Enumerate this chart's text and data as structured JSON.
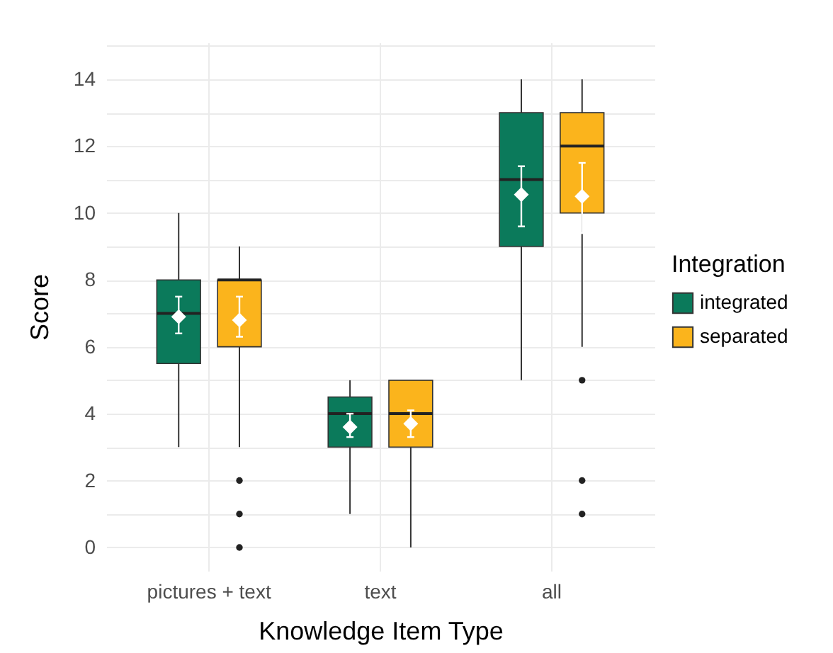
{
  "chart_data": {
    "type": "box",
    "xlabel": "Knowledge Item Type",
    "ylabel": "Score",
    "legend_title": "Integration",
    "categories": [
      "pictures + text",
      "text",
      "all"
    ],
    "series": [
      {
        "name": "integrated",
        "color": "#0b7a5b",
        "boxes": [
          {
            "low": 3,
            "q1": 5.5,
            "median": 7,
            "q3": 8,
            "high": 10
          },
          {
            "low": 1,
            "q1": 3,
            "median": 4,
            "q3": 4.5,
            "high": 5
          },
          {
            "low": 5,
            "q1": 9,
            "median": 11,
            "q3": 13,
            "high": 14
          }
        ]
      },
      {
        "name": "separated",
        "color": "#fbb41c",
        "boxes": [
          {
            "low": 3,
            "q1": 6,
            "median": 8,
            "q3": 8,
            "high": 9,
            "outliers": [
              2,
              1,
              0
            ]
          },
          {
            "low": 0,
            "q1": 3,
            "median": 4,
            "q3": 5,
            "high": 5
          },
          {
            "low": 6,
            "q1": 10,
            "median": 12,
            "q3": 13,
            "high": 14,
            "outliers": [
              5,
              2,
              1
            ]
          }
        ]
      },
      {
        "type": "scatter",
        "color": "#ffffff",
        "x": [
          "pictures + text",
          "text",
          "all"
        ],
        "values": [
          6.9,
          3.6,
          10.55
        ],
        "errors": [
          [
            6.4,
            7.5
          ],
          [
            3.3,
            4.0
          ],
          [
            9.6,
            11.4
          ]
        ]
      },
      {
        "type": "scatter",
        "color": "#ffffff",
        "x": [
          "pictures + text",
          "text",
          "all"
        ],
        "values": [
          6.8,
          3.7,
          10.5
        ],
        "errors": [
          [
            6.3,
            7.5
          ],
          [
            3.3,
            4.1
          ],
          [
            9.4,
            11.5
          ]
        ]
      }
    ],
    "marker": "diamond",
    "ylim": [
      -0.7,
      15.1
    ],
    "yticks": [
      0,
      {
        "value": 1,
        "label": null
      },
      2,
      {
        "value": 3,
        "label": null
      },
      4,
      {
        "value": 5,
        "label": null
      },
      6,
      {
        "value": 7,
        "label": null
      },
      8,
      {
        "value": 9,
        "label": null
      },
      10,
      {
        "value": 11,
        "label": null
      },
      12,
      {
        "value": 13,
        "label": null
      },
      14,
      {
        "value": 15,
        "label": null
      }
    ],
    "grid": true,
    "legend": "right"
  }
}
